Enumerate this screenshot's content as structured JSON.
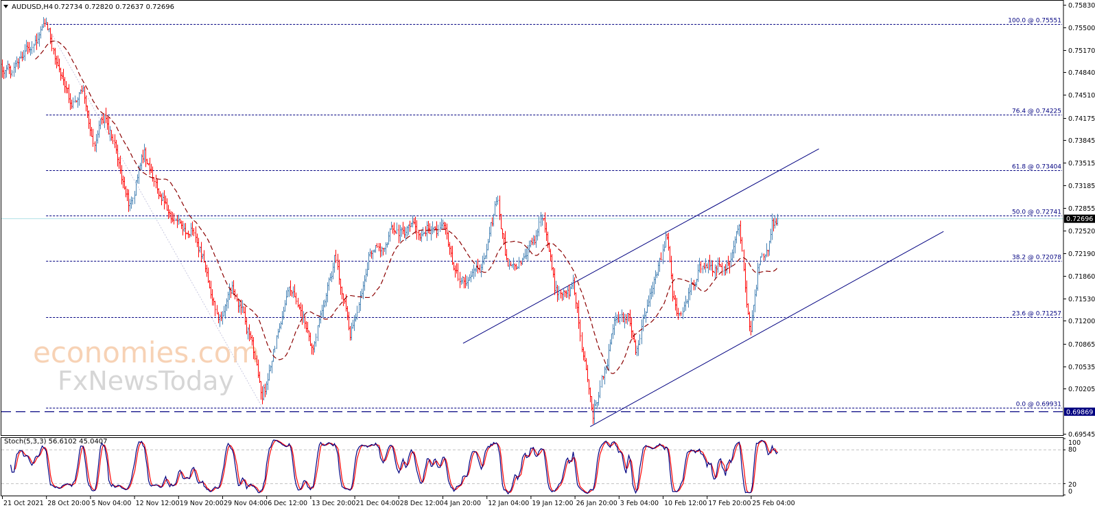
{
  "header": {
    "symbol": "AUDUSD,H4",
    "ohlc_text": "0.72734 0.72820 0.72637 0.72696"
  },
  "watermark": {
    "line1": "economies.com",
    "line2": "FxNewsToday"
  },
  "chart_data": {
    "type": "ohlc-bars",
    "symbol": "AUDUSD",
    "timeframe": "H4",
    "price_axis": {
      "ylim": [
        0.69545,
        0.7583
      ],
      "ticks": [
        "0.75830",
        "0.75500",
        "0.75170",
        "0.74840",
        "0.74510",
        "0.74175",
        "0.73845",
        "0.73515",
        "0.73185",
        "0.72855",
        "0.72520",
        "0.72190",
        "0.71860",
        "0.71530",
        "0.71200",
        "0.70865",
        "0.70535",
        "0.70205",
        "0.69545"
      ],
      "current_price": "0.72696",
      "marker_price": "0.69869"
    },
    "time_axis": {
      "ticks": [
        {
          "t": "2021-10-21 00:00",
          "label": "21 Oct 2021"
        },
        {
          "t": "2021-10-28 20:00",
          "label": "28 Oct 20:00"
        },
        {
          "t": "2021-11-05 04:00",
          "label": "5 Nov 04:00"
        },
        {
          "t": "2021-11-12 12:00",
          "label": "12 Nov 12:00"
        },
        {
          "t": "2021-11-19 20:00",
          "label": "19 Nov 20:00"
        },
        {
          "t": "2021-11-29 04:00",
          "label": "29 Nov 04:00"
        },
        {
          "t": "2021-12-06 12:00",
          "label": "6 Dec 12:00"
        },
        {
          "t": "2021-12-13 20:00",
          "label": "13 Dec 20:00"
        },
        {
          "t": "2021-12-21 04:00",
          "label": "21 Dec 04:00"
        },
        {
          "t": "2021-12-28 12:00",
          "label": "28 Dec 12:00"
        },
        {
          "t": "2022-01-04 20:00",
          "label": "4 Jan 20:00"
        },
        {
          "t": "2022-01-12 04:00",
          "label": "12 Jan 04:00"
        },
        {
          "t": "2022-01-19 12:00",
          "label": "19 Jan 12:00"
        },
        {
          "t": "2022-01-26 20:00",
          "label": "26 Jan 20:00"
        },
        {
          "t": "2022-02-03 04:00",
          "label": "3 Feb 04:00"
        },
        {
          "t": "2022-02-10 12:00",
          "label": "10 Feb 12:00"
        },
        {
          "t": "2022-02-17 20:00",
          "label": "17 Feb 20:00"
        },
        {
          "t": "2022-02-25 04:00",
          "label": "25 Feb 04:00"
        }
      ]
    },
    "colors": {
      "bull": "#4682b4",
      "bear": "#ff0000",
      "moving_average": "#8b0000",
      "fibonacci": "#000080",
      "trendline": "#000080",
      "current_price_line": "#b0e0e6",
      "stoch_main": "#000080",
      "stoch_signal": "#ff0000"
    },
    "price_path": [
      [
        "2021-10-21 00:00",
        0.7496
      ],
      [
        "2021-10-23 00:00",
        0.7486
      ],
      [
        "2021-10-26 04:00",
        0.7517
      ],
      [
        "2021-10-28 20:00",
        0.7555
      ],
      [
        "2021-10-30 12:00",
        0.7517
      ],
      [
        "2021-11-01 20:00",
        0.7435
      ],
      [
        "2021-11-04 00:00",
        0.746
      ],
      [
        "2021-11-05 16:00",
        0.7373
      ],
      [
        "2021-11-07 16:00",
        0.7419
      ],
      [
        "2021-11-09 12:00",
        0.7373
      ],
      [
        "2021-11-11 20:00",
        0.7292
      ],
      [
        "2021-11-14 04:00",
        0.7368
      ],
      [
        "2021-11-16 12:00",
        0.7282
      ],
      [
        "2021-11-19 12:00",
        0.7256
      ],
      [
        "2021-11-22 08:00",
        0.7246
      ],
      [
        "2021-11-25 08:00",
        0.72
      ],
      [
        "2021-11-28 08:00",
        0.7123
      ],
      [
        "2021-11-30 20:00",
        0.7149
      ],
      [
        "2021-12-02 12:00",
        0.7159
      ],
      [
        "2021-12-04 08:00",
        0.7077
      ],
      [
        "2021-12-05 20:00",
        0.6995
      ],
      [
        "2021-12-07 08:00",
        0.7067
      ],
      [
        "2021-12-10 08:00",
        0.7179
      ],
      [
        "2021-12-14 08:00",
        0.7103
      ],
      [
        "2021-12-17 20:00",
        0.721
      ],
      [
        "2021-12-20 12:00",
        0.7097
      ],
      [
        "2021-12-23 16:00",
        0.721
      ],
      [
        "2021-12-26 00:00",
        0.724
      ],
      [
        "2021-12-30 04:00",
        0.7261
      ],
      [
        "2022-01-02 12:00",
        0.7246
      ],
      [
        "2022-01-05 08:00",
        0.7261
      ],
      [
        "2022-01-07 16:00",
        0.7164
      ],
      [
        "2022-01-11 04:00",
        0.72
      ],
      [
        "2022-01-14 00:00",
        0.7302
      ],
      [
        "2022-01-15 20:00",
        0.72
      ],
      [
        "2022-01-18 08:00",
        0.7215
      ],
      [
        "2022-01-21 04:00",
        0.7261
      ],
      [
        "2022-01-23 16:00",
        0.7159
      ],
      [
        "2022-01-26 12:00",
        0.7169
      ],
      [
        "2022-01-28 08:00",
        0.7057
      ],
      [
        "2022-01-29 20:00",
        0.6975
      ],
      [
        "2022-01-31 20:00",
        0.7057
      ],
      [
        "2022-02-02 12:00",
        0.7128
      ],
      [
        "2022-02-04 20:00",
        0.7118
      ],
      [
        "2022-02-06 00:00",
        0.7077
      ],
      [
        "2022-02-08 20:00",
        0.7179
      ],
      [
        "2022-02-11 00:00",
        0.7251
      ],
      [
        "2022-02-12 04:00",
        0.7149
      ],
      [
        "2022-02-13 12:00",
        0.7113
      ],
      [
        "2022-02-16 12:00",
        0.72
      ],
      [
        "2022-02-19 12:00",
        0.7215
      ],
      [
        "2022-02-21 20:00",
        0.721
      ],
      [
        "2022-02-23 04:00",
        0.7276
      ],
      [
        "2022-02-24 00:00",
        0.719
      ],
      [
        "2022-02-25 00:00",
        0.7108
      ],
      [
        "2022-02-26 08:00",
        0.72
      ],
      [
        "2022-02-27 16:00",
        0.7235
      ],
      [
        "2022-02-28 16:00",
        0.7282
      ],
      [
        "2022-03-01 16:00",
        0.72696
      ]
    ],
    "moving_average": {
      "style": "dashed"
    },
    "fibonacci": {
      "anchor_high": [
        "2021-10-28 20:00",
        0.75551
      ],
      "anchor_low": [
        "2021-12-05 20:00",
        0.69931
      ],
      "levels": [
        {
          "label": "100.0 @ 0.75551",
          "price": 0.75551
        },
        {
          "label": "76.4 @ 0.74225",
          "price": 0.74225
        },
        {
          "label": "61.8 @ 0.73404",
          "price": 0.73404
        },
        {
          "label": "50.0 @ 0.72741",
          "price": 0.72741
        },
        {
          "label": "38.2 @ 0.72078",
          "price": 0.72078
        },
        {
          "label": "23.6 @ 0.71257",
          "price": 0.71257
        },
        {
          "label": "0.0 @ 0.69931",
          "price": 0.69931
        }
      ]
    },
    "trendlines": [
      {
        "from": [
          "2022-01-08 06:00",
          0.7087
        ],
        "to": [
          "2022-03-08 12:00",
          0.7372
        ]
      },
      {
        "from": [
          "2022-01-29 10:00",
          0.6965
        ],
        "to": [
          "2022-03-29 06:00",
          0.7251
        ]
      }
    ],
    "horizontal_line": 0.69869,
    "stochastic": {
      "label": "Stoch(5,3,3) 56.6102 45.0407",
      "params": [
        5,
        3,
        3
      ],
      "main": 56.6102,
      "signal": 45.0407,
      "ylim": [
        0,
        100
      ],
      "levels": [
        80,
        20
      ],
      "axis_labels": [
        "100",
        "80",
        "20",
        "0"
      ]
    }
  }
}
